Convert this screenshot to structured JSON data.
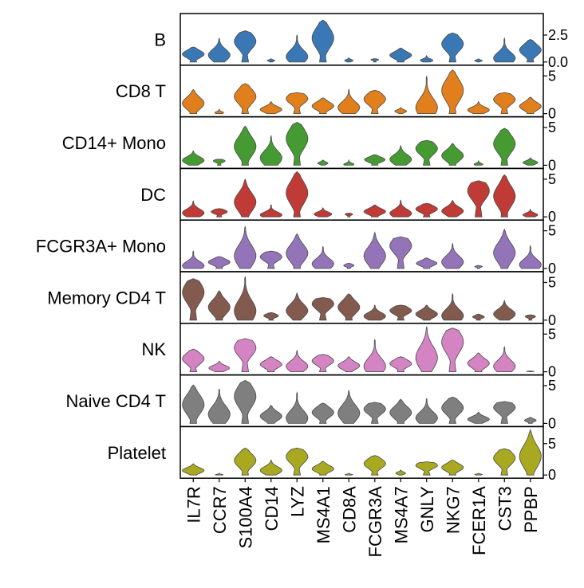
{
  "chart_data": {
    "type": "violin",
    "genes": [
      "IL7R",
      "CCR7",
      "S100A4",
      "CD14",
      "LYZ",
      "MS4A1",
      "CD8A",
      "FCGR3A",
      "MS4A7",
      "GNLY",
      "NKG7",
      "FCER1A",
      "CST3",
      "PPBP"
    ],
    "groups": [
      {
        "name": "B",
        "color": "#3a78b5",
        "yticks": [
          "2.5",
          "0.0"
        ],
        "ymax": 4.2,
        "violins": [
          [
            0,
            1.4
          ],
          [
            0,
            2.2
          ],
          [
            0,
            2.9
          ],
          [
            0,
            0.3
          ],
          [
            0,
            2.5
          ],
          [
            0,
            3.9
          ],
          [
            0,
            0.4
          ],
          [
            0,
            0.3
          ],
          [
            0,
            1.3
          ],
          [
            0,
            0.6
          ],
          [
            0,
            2.7
          ],
          [
            0,
            0.3
          ],
          [
            0,
            2.2
          ],
          [
            0,
            2.1
          ]
        ]
      },
      {
        "name": "CD8 T",
        "color": "#e07f1c",
        "yticks": [
          "5",
          "0"
        ],
        "ymax": 6,
        "violins": [
          [
            0,
            3.2
          ],
          [
            0,
            0.6
          ],
          [
            0,
            4.0
          ],
          [
            0,
            1.6
          ],
          [
            0,
            2.8
          ],
          [
            0,
            2.1
          ],
          [
            0,
            3.2
          ],
          [
            0,
            3.1
          ],
          [
            0,
            0.8
          ],
          [
            0,
            5.0
          ],
          [
            0,
            5.8
          ],
          [
            0,
            1.6
          ],
          [
            0,
            2.8
          ],
          [
            0,
            2.2
          ]
        ]
      },
      {
        "name": "CD14+ Mono",
        "color": "#459b32",
        "yticks": [
          "5",
          "0"
        ],
        "ymax": 6,
        "violins": [
          [
            0,
            1.9
          ],
          [
            0,
            0.8
          ],
          [
            0,
            5.2
          ],
          [
            0,
            3.9
          ],
          [
            0,
            5.7
          ],
          [
            0,
            0.7
          ],
          [
            0,
            0.7
          ],
          [
            0,
            1.4
          ],
          [
            0,
            2.6
          ],
          [
            0,
            3.3
          ],
          [
            0,
            2.9
          ],
          [
            0,
            0.6
          ],
          [
            0,
            4.9
          ],
          [
            0,
            1.0
          ]
        ]
      },
      {
        "name": "DC",
        "color": "#c03a36",
        "yticks": [
          "5",
          "0"
        ],
        "ymax": 6,
        "violins": [
          [
            0,
            2.1
          ],
          [
            0,
            1.1
          ],
          [
            0,
            5.0
          ],
          [
            0,
            1.6
          ],
          [
            0,
            6.0
          ],
          [
            0,
            1.2
          ],
          [
            0,
            0.5
          ],
          [
            0,
            1.6
          ],
          [
            0,
            2.2
          ],
          [
            0,
            1.8
          ],
          [
            0,
            2.2
          ],
          [
            0,
            4.8
          ],
          [
            0,
            5.6
          ],
          [
            0,
            1.0
          ]
        ]
      },
      {
        "name": "FCGR3A+ Mono",
        "color": "#9474b9",
        "yticks": [
          "5",
          "0"
        ],
        "ymax": 6,
        "violins": [
          [
            0,
            2.3
          ],
          [
            0,
            1.6
          ],
          [
            0,
            5.6
          ],
          [
            0,
            2.3
          ],
          [
            0,
            4.6
          ],
          [
            0,
            2.9
          ],
          [
            0,
            0.7
          ],
          [
            0,
            4.8
          ],
          [
            0,
            4.2
          ],
          [
            0,
            1.4
          ],
          [
            0,
            3.3
          ],
          [
            0,
            0.4
          ],
          [
            0,
            5.2
          ],
          [
            0,
            3.0
          ]
        ]
      },
      {
        "name": "Memory CD4 T",
        "color": "#825a4e",
        "yticks": [
          "5",
          "0"
        ],
        "ymax": 6,
        "violins": [
          [
            0,
            5.5
          ],
          [
            0,
            3.9
          ],
          [
            0,
            5.8
          ],
          [
            0,
            1.0
          ],
          [
            0,
            3.6
          ],
          [
            0,
            3.0
          ],
          [
            0,
            3.5
          ],
          [
            0,
            2.0
          ],
          [
            0,
            2.0
          ],
          [
            0,
            2.0
          ],
          [
            0,
            3.5
          ],
          [
            0,
            0.8
          ],
          [
            0,
            2.6
          ],
          [
            0,
            0.7
          ]
        ]
      },
      {
        "name": "NK",
        "color": "#d483c3",
        "yticks": [
          "5",
          "0"
        ],
        "ymax": 6,
        "violins": [
          [
            0,
            3.0
          ],
          [
            0,
            1.4
          ],
          [
            0,
            4.4
          ],
          [
            0,
            2.0
          ],
          [
            0,
            2.8
          ],
          [
            0,
            2.3
          ],
          [
            0,
            2.0
          ],
          [
            0,
            4.3
          ],
          [
            0,
            2.0
          ],
          [
            0,
            6.0
          ],
          [
            0,
            5.8
          ],
          [
            0,
            2.5
          ],
          [
            0,
            3.3
          ],
          [
            0,
            0.1
          ]
        ]
      },
      {
        "name": "Naive CD4 T",
        "color": "#7f7f7f",
        "yticks": [
          "5",
          "0"
        ],
        "ymax": 6,
        "violins": [
          [
            0,
            5.1
          ],
          [
            0,
            4.6
          ],
          [
            0,
            5.7
          ],
          [
            0,
            2.4
          ],
          [
            0,
            4.1
          ],
          [
            0,
            2.7
          ],
          [
            0,
            4.4
          ],
          [
            0,
            2.8
          ],
          [
            0,
            3.2
          ],
          [
            0,
            3.3
          ],
          [
            0,
            3.5
          ],
          [
            0,
            1.5
          ],
          [
            0,
            2.9
          ],
          [
            0,
            0.8
          ]
        ]
      },
      {
        "name": "Platelet",
        "color": "#a8a821",
        "yticks": [
          "5",
          "0"
        ],
        "ymax": 7.2,
        "violins": [
          [
            0,
            1.8
          ],
          [
            0,
            0.3
          ],
          [
            0,
            4.3
          ],
          [
            0,
            2.4
          ],
          [
            0,
            4.3
          ],
          [
            0,
            2.2
          ],
          [
            0,
            0.3
          ],
          [
            0,
            3.1
          ],
          [
            0,
            0.8
          ],
          [
            0,
            2.1
          ],
          [
            0,
            2.4
          ],
          [
            0,
            0.3
          ],
          [
            0,
            4.2
          ],
          [
            0,
            7.2
          ]
        ]
      }
    ]
  }
}
